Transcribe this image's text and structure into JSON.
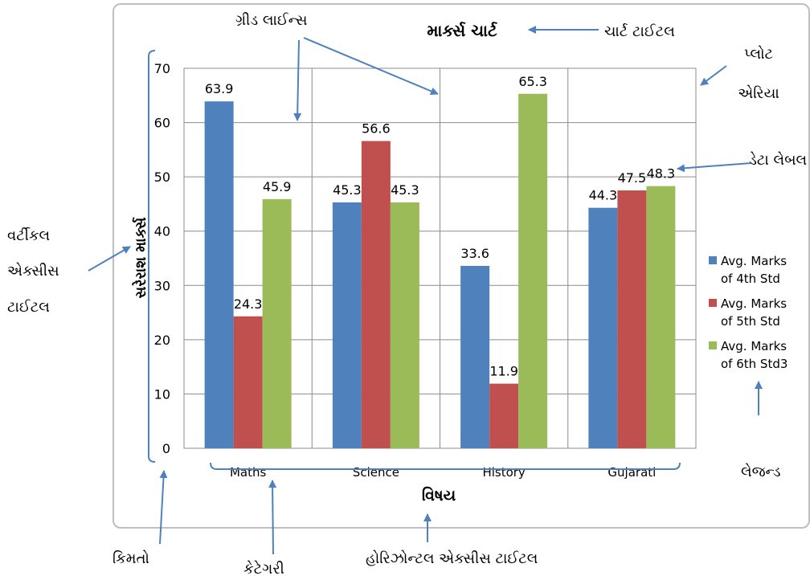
{
  "chart_data": {
    "type": "bar",
    "title": "માર્ક્સ ચાર્ટ",
    "xlabel": "વિષય",
    "ylabel": "સરેરાશ માર્ક્સ",
    "categories": [
      "Maths",
      "Science",
      "History",
      "Gujarati"
    ],
    "series": [
      {
        "name": "Avg. Marks of 4th Std",
        "legend_lines": [
          "Avg. Marks",
          "of 4th Std"
        ],
        "color": "#4f81bd",
        "values": [
          63.9,
          45.3,
          33.6,
          44.3
        ]
      },
      {
        "name": "Avg. Marks of 5th Std",
        "legend_lines": [
          "Avg. Marks",
          "of 5th Std"
        ],
        "color": "#c0504d",
        "values": [
          24.3,
          56.6,
          11.9,
          47.5
        ]
      },
      {
        "name": "Avg. Marks of 6th Std3",
        "legend_lines": [
          "Avg. Marks",
          "of 6th Std3"
        ],
        "color": "#9bbb59",
        "values": [
          45.9,
          45.3,
          65.3,
          48.3
        ]
      }
    ],
    "ylim": [
      0,
      70
    ],
    "yticks": [
      0,
      10,
      20,
      30,
      40,
      50,
      60,
      70
    ],
    "grid": true,
    "legend_position": "right"
  },
  "annotations": {
    "gridlines": "ગ્રીડ લાઈન્સ",
    "chart_title": "ચાર્ટ ટાઈટલ",
    "plot_area_line1": "પ્લોટ",
    "plot_area_line2": "એરિયા",
    "data_label": "ડેટા લેબલ",
    "vertical_axis_title_line1": "વર્ટીકલ",
    "vertical_axis_title_line2": "એક્સીસ",
    "vertical_axis_title_line3": "ટાઈટલ",
    "legend": "લેજન્ડ",
    "values": "કિમતો",
    "category": "કેટેગરી",
    "horizontal_axis_title": "હોરિઝોન્ટલ એક્સીસ ટાઈટલ"
  }
}
